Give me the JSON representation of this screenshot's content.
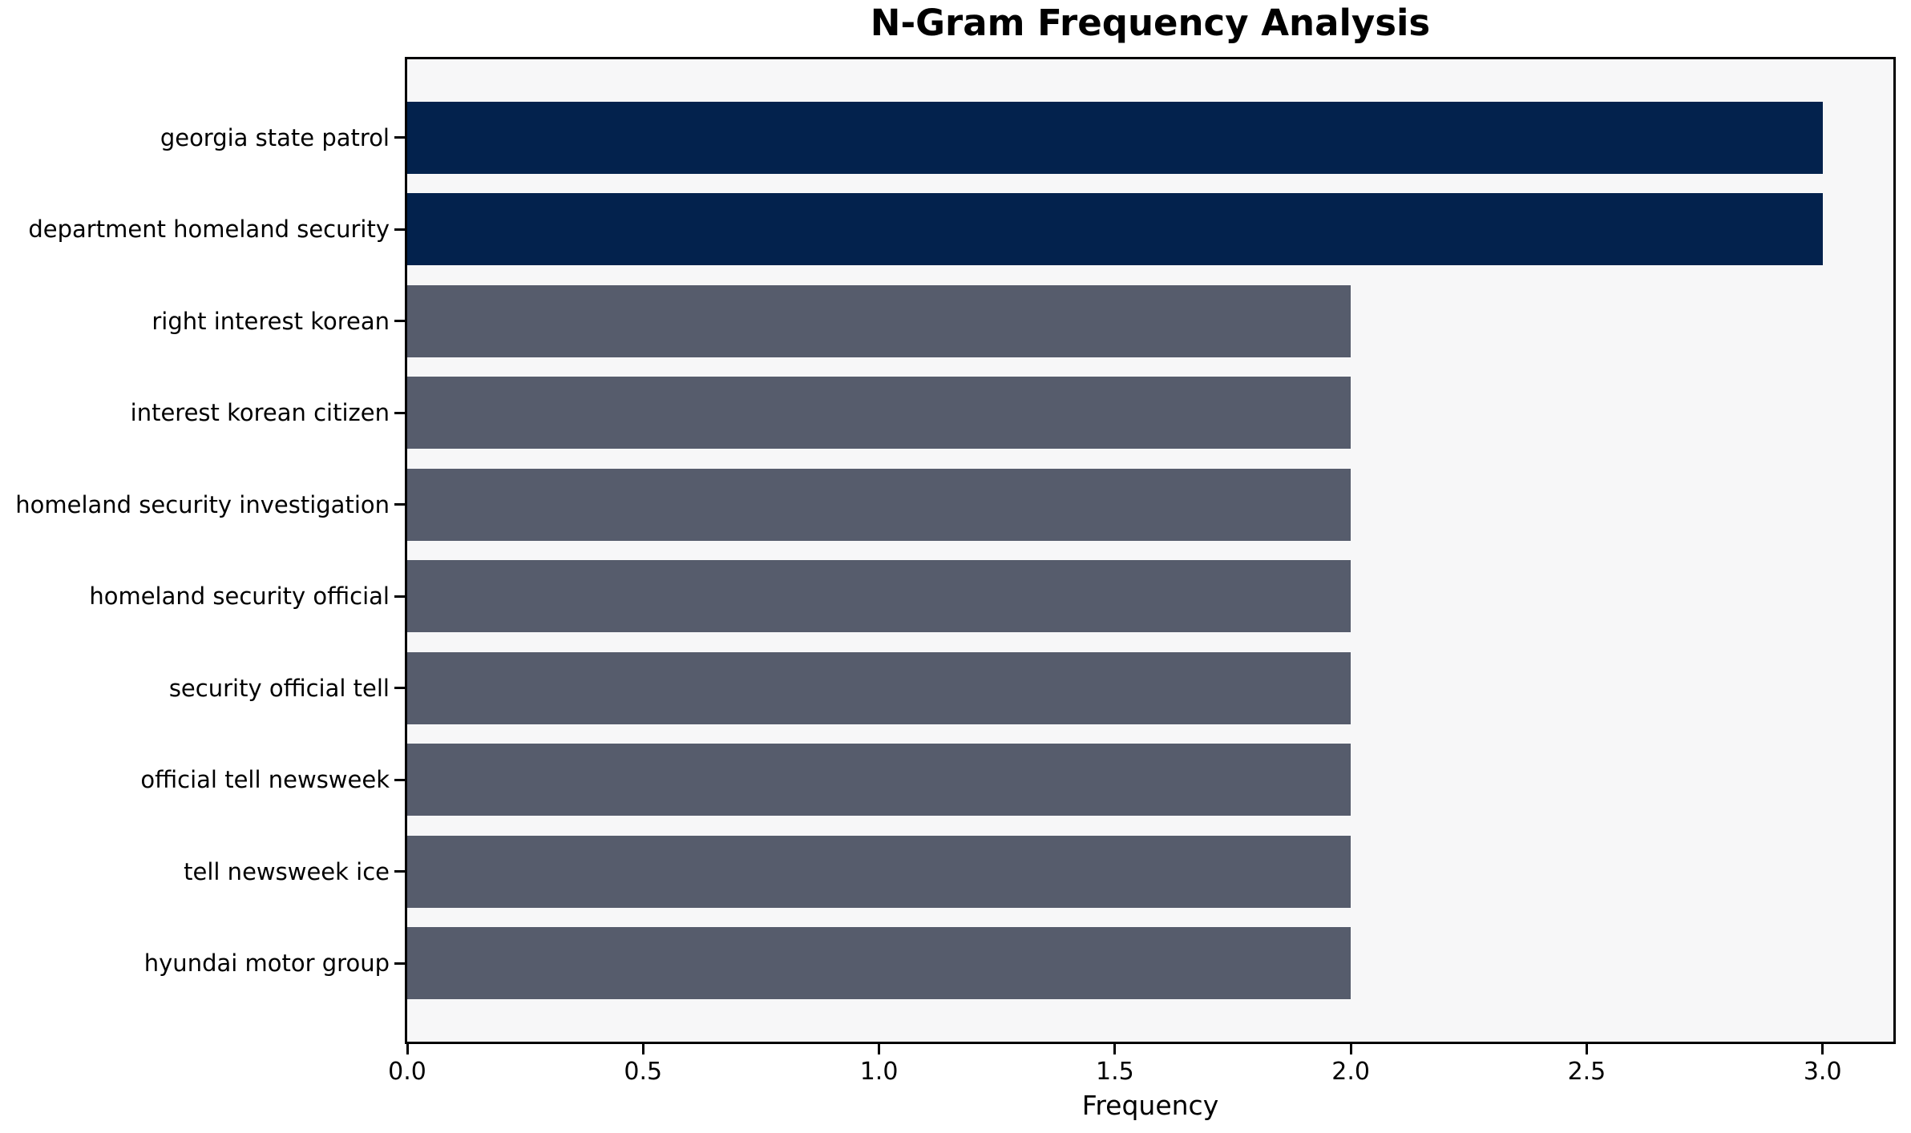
{
  "chart_data": {
    "type": "bar",
    "orientation": "horizontal",
    "title": "N-Gram Frequency Analysis",
    "xlabel": "Frequency",
    "ylabel": "",
    "categories": [
      "georgia state patrol",
      "department homeland security",
      "right interest korean",
      "interest korean citizen",
      "homeland security investigation",
      "homeland security official",
      "security official tell",
      "official tell newsweek",
      "tell newsweek ice",
      "hyundai motor group"
    ],
    "values": [
      3,
      3,
      2,
      2,
      2,
      2,
      2,
      2,
      2,
      2
    ],
    "bar_colors": [
      "#03224d",
      "#03224d",
      "#565c6c",
      "#565c6c",
      "#565c6c",
      "#565c6c",
      "#565c6c",
      "#565c6c",
      "#565c6c",
      "#565c6c"
    ],
    "highlight_color": "#03224d",
    "default_color": "#565c6c",
    "plot_background": "#f7f7f8",
    "axis_color": "#000000",
    "text_color": "#000000",
    "xlim": [
      0,
      3.15
    ],
    "xtick_values": [
      0,
      0.5,
      1,
      1.5,
      2,
      2.5,
      3
    ],
    "xtick_labels": [
      "0.0",
      "0.5",
      "1.0",
      "1.5",
      "2.0",
      "2.5",
      "3.0"
    ],
    "grid": false,
    "legend_position": "none"
  }
}
